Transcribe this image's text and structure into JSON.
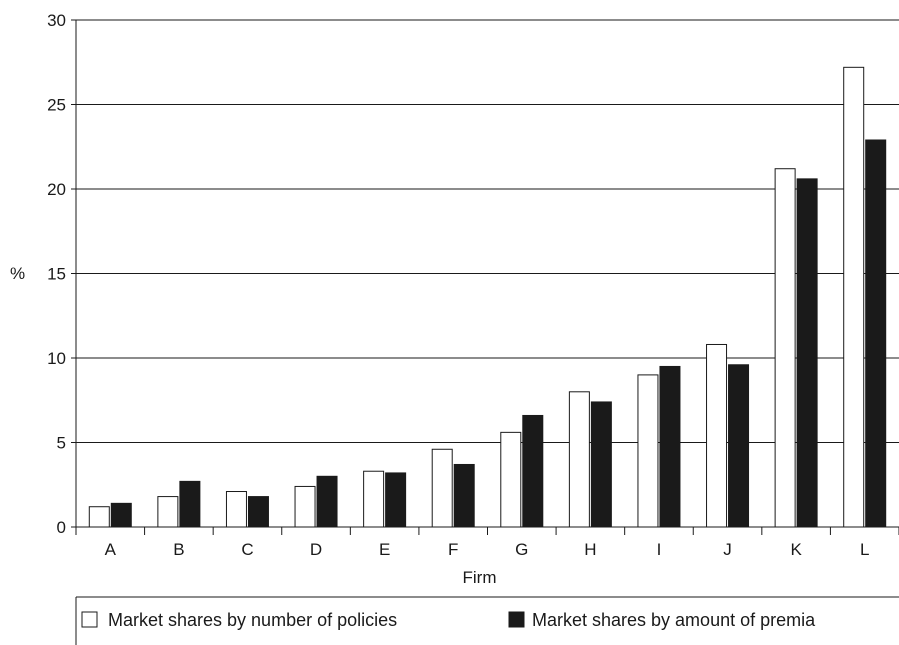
{
  "chart_data": {
    "type": "bar",
    "title": "",
    "xlabel": "Firm",
    "ylabel": "%",
    "ylim": [
      0,
      30
    ],
    "yticks": [
      0,
      5,
      10,
      15,
      20,
      25,
      30
    ],
    "grid": "horizontal",
    "legend_position": "bottom",
    "categories": [
      "A",
      "B",
      "C",
      "D",
      "E",
      "F",
      "G",
      "H",
      "I",
      "J",
      "K",
      "L"
    ],
    "series": [
      {
        "name": "Market shares by number of policies",
        "color": "#ffffff",
        "values": [
          1.2,
          1.8,
          2.1,
          2.4,
          3.3,
          4.6,
          5.6,
          8.0,
          9.0,
          10.8,
          21.2,
          27.2
        ]
      },
      {
        "name": "Market shares by amount of premia",
        "color": "#1a1a1a",
        "values": [
          1.4,
          2.7,
          1.8,
          3.0,
          3.2,
          3.7,
          6.6,
          7.4,
          9.5,
          9.6,
          20.6,
          22.9
        ]
      }
    ]
  }
}
